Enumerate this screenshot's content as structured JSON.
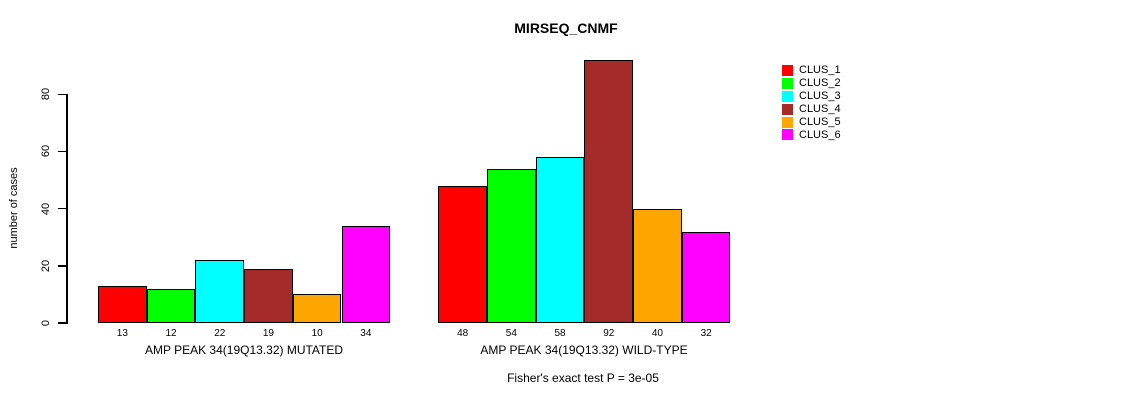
{
  "chart_data": {
    "type": "bar",
    "title": "MIRSEQ_CNMF",
    "ylabel": "number of cases",
    "xlabel": "",
    "yticks": [
      0,
      20,
      40,
      60,
      80
    ],
    "ylim": [
      0,
      92
    ],
    "grid": false,
    "legend_position": "right",
    "bar_border_color": "#000000",
    "categories": [
      "AMP PEAK 34(19Q13.32) MUTATED",
      "AMP PEAK 34(19Q13.32) WILD-TYPE"
    ],
    "series": [
      {
        "name": "CLUS_1",
        "color": "#FF0000",
        "values": [
          13,
          48
        ]
      },
      {
        "name": "CLUS_2",
        "color": "#00FF00",
        "values": [
          12,
          54
        ]
      },
      {
        "name": "CLUS_3",
        "color": "#00FFFF",
        "values": [
          22,
          58
        ]
      },
      {
        "name": "CLUS_4",
        "color": "#A52A2A",
        "values": [
          19,
          92
        ]
      },
      {
        "name": "CLUS_5",
        "color": "#FFA500",
        "values": [
          10,
          40
        ]
      },
      {
        "name": "CLUS_6",
        "color": "#FF00FF",
        "values": [
          34,
          32
        ]
      }
    ],
    "footnote": "Fisher's exact test P = 3e-05"
  }
}
